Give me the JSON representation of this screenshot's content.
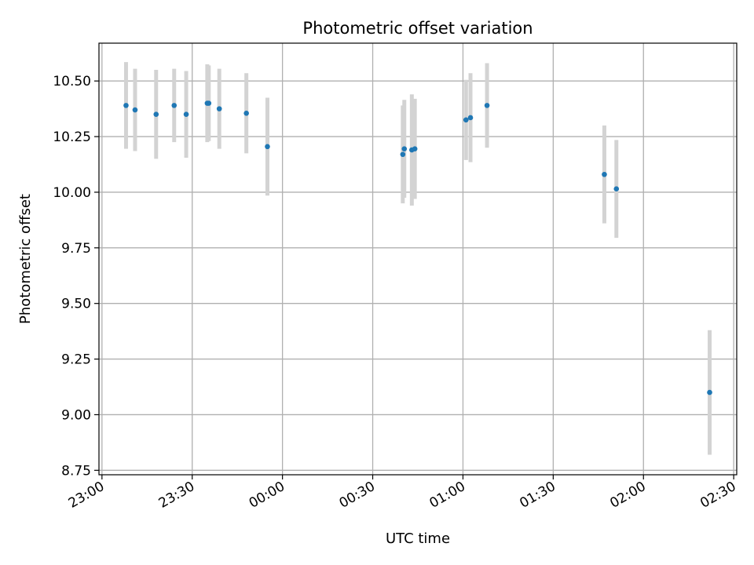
{
  "chart_data": {
    "type": "scatter",
    "title": "Photometric offset variation",
    "xlabel": "UTC time",
    "ylabel": "Photometric offset",
    "grid": true,
    "x_range": [
      "22:59",
      "02:31"
    ],
    "ylim": [
      8.73,
      10.67
    ],
    "x_ticks": [
      "23:00",
      "23:30",
      "00:00",
      "00:30",
      "01:00",
      "01:30",
      "02:00",
      "02:30"
    ],
    "y_ticks": [
      "8.75",
      "9.00",
      "9.25",
      "9.50",
      "9.75",
      "10.00",
      "10.25",
      "10.50"
    ],
    "colors": {
      "point": "#1f77b4",
      "errorbar": "#d3d3d3",
      "grid": "#b0b0b0"
    },
    "points": [
      {
        "x": "23:08",
        "y": 10.39,
        "err": 0.195
      },
      {
        "x": "23:11",
        "y": 10.37,
        "err": 0.185
      },
      {
        "x": "23:18",
        "y": 10.35,
        "err": 0.2
      },
      {
        "x": "23:24",
        "y": 10.39,
        "err": 0.165
      },
      {
        "x": "23:28",
        "y": 10.35,
        "err": 0.195
      },
      {
        "x": "23:35",
        "y": 10.4,
        "err": 0.175
      },
      {
        "x": "23:35.5",
        "y": 10.4,
        "err": 0.17
      },
      {
        "x": "23:39",
        "y": 10.375,
        "err": 0.18
      },
      {
        "x": "23:48",
        "y": 10.355,
        "err": 0.18
      },
      {
        "x": "23:55",
        "y": 10.205,
        "err": 0.22
      },
      {
        "x": "00:40",
        "y": 10.17,
        "err": 0.22
      },
      {
        "x": "00:40.5",
        "y": 10.195,
        "err": 0.22
      },
      {
        "x": "00:43",
        "y": 10.19,
        "err": 0.25
      },
      {
        "x": "00:44",
        "y": 10.195,
        "err": 0.225
      },
      {
        "x": "01:01",
        "y": 10.325,
        "err": 0.18
      },
      {
        "x": "01:02.5",
        "y": 10.335,
        "err": 0.2
      },
      {
        "x": "01:08",
        "y": 10.39,
        "err": 0.19
      },
      {
        "x": "01:47",
        "y": 10.08,
        "err": 0.22
      },
      {
        "x": "01:51",
        "y": 10.015,
        "err": 0.22
      },
      {
        "x": "02:22",
        "y": 9.1,
        "err": 0.28
      }
    ]
  }
}
